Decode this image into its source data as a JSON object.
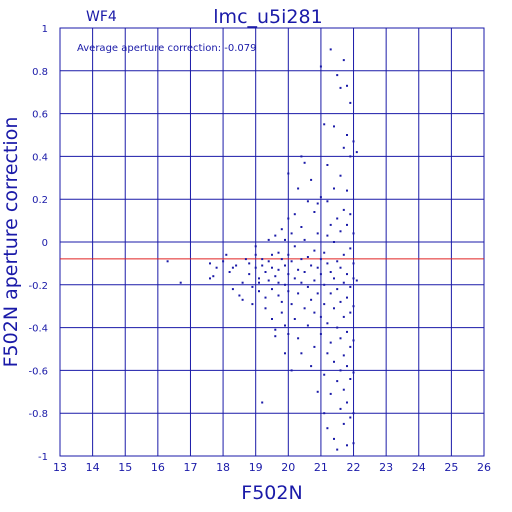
{
  "chart_data": {
    "type": "scatter",
    "title": "lmc_u5i281",
    "chip_label": "WF4",
    "annotation": "Average aperture correction: -0.079",
    "xlabel": "F502N",
    "ylabel": "F502N aperture correction",
    "xlim": [
      13,
      26
    ],
    "ylim": [
      -1,
      1
    ],
    "x_ticks": [
      "13",
      "14",
      "15",
      "16",
      "17",
      "18",
      "19",
      "20",
      "21",
      "22",
      "23",
      "24",
      "25",
      "26"
    ],
    "y_ticks": [
      "1",
      "0.8",
      "0.6",
      "0.4",
      "0.2",
      "0",
      "-0.2",
      "-0.4",
      "-0.6",
      "-0.8",
      "-1"
    ],
    "grid": true,
    "reference_line": -0.079,
    "colors": {
      "axes": "#1a1aa8",
      "points": "#1a1aa8",
      "reference": "#e02020"
    },
    "points": [
      [
        16.3,
        -0.09
      ],
      [
        16.7,
        -0.19
      ],
      [
        17.6,
        -0.17
      ],
      [
        17.6,
        -0.1
      ],
      [
        17.8,
        -0.12
      ],
      [
        17.7,
        -0.16
      ],
      [
        18.0,
        -0.09
      ],
      [
        18.1,
        -0.06
      ],
      [
        18.2,
        -0.14
      ],
      [
        18.3,
        -0.22
      ],
      [
        18.3,
        -0.12
      ],
      [
        18.4,
        -0.11
      ],
      [
        18.5,
        -0.25
      ],
      [
        18.6,
        -0.19
      ],
      [
        18.6,
        -0.27
      ],
      [
        18.7,
        -0.08
      ],
      [
        18.8,
        -0.1
      ],
      [
        18.8,
        -0.15
      ],
      [
        18.9,
        -0.21
      ],
      [
        18.9,
        -0.29
      ],
      [
        19.0,
        -0.02
      ],
      [
        19.0,
        -0.06
      ],
      [
        19.0,
        -0.12
      ],
      [
        19.1,
        -0.17
      ],
      [
        19.1,
        -0.19
      ],
      [
        19.1,
        -0.23
      ],
      [
        19.2,
        -0.08
      ],
      [
        19.2,
        -0.11
      ],
      [
        19.2,
        -0.75
      ],
      [
        19.3,
        -0.14
      ],
      [
        19.3,
        -0.26
      ],
      [
        19.3,
        -0.31
      ],
      [
        19.4,
        -0.18
      ],
      [
        19.4,
        -0.09
      ],
      [
        19.4,
        0.01
      ],
      [
        19.5,
        -0.12
      ],
      [
        19.5,
        -0.06
      ],
      [
        19.5,
        -0.22
      ],
      [
        19.5,
        -0.36
      ],
      [
        19.6,
        -0.16
      ],
      [
        19.6,
        -0.41
      ],
      [
        19.6,
        -0.44
      ],
      [
        19.6,
        0.03
      ],
      [
        19.7,
        -0.13
      ],
      [
        19.7,
        -0.25
      ],
      [
        19.7,
        -0.05
      ],
      [
        19.7,
        -0.19
      ],
      [
        19.8,
        -0.08
      ],
      [
        19.8,
        -0.28
      ],
      [
        19.8,
        -0.33
      ],
      [
        19.8,
        0.06
      ],
      [
        19.9,
        -0.11
      ],
      [
        19.9,
        -0.2
      ],
      [
        19.9,
        0.01
      ],
      [
        19.9,
        -0.39
      ],
      [
        19.9,
        -0.52
      ],
      [
        20.0,
        -0.15
      ],
      [
        20.0,
        -0.06
      ],
      [
        20.0,
        -0.23
      ],
      [
        20.0,
        0.32
      ],
      [
        20.0,
        0.11
      ],
      [
        20.0,
        -0.43
      ],
      [
        20.1,
        -0.09
      ],
      [
        20.1,
        -0.29
      ],
      [
        20.1,
        0.04
      ],
      [
        20.1,
        -0.6
      ],
      [
        20.2,
        -0.17
      ],
      [
        20.2,
        -0.36
      ],
      [
        20.2,
        -0.02
      ],
      [
        20.2,
        0.13
      ],
      [
        20.3,
        -0.13
      ],
      [
        20.3,
        -0.24
      ],
      [
        20.3,
        -0.45
      ],
      [
        20.3,
        0.25
      ],
      [
        20.4,
        0.4
      ],
      [
        20.4,
        -0.08
      ],
      [
        20.4,
        -0.19
      ],
      [
        20.4,
        0.07
      ],
      [
        20.4,
        -0.52
      ],
      [
        20.5,
        -0.31
      ],
      [
        20.5,
        0.01
      ],
      [
        20.5,
        -0.14
      ],
      [
        20.5,
        0.37
      ],
      [
        20.6,
        -0.21
      ],
      [
        20.6,
        -0.39
      ],
      [
        20.6,
        0.19
      ],
      [
        20.6,
        -0.07
      ],
      [
        20.7,
        -0.11
      ],
      [
        20.7,
        -0.27
      ],
      [
        20.7,
        0.29
      ],
      [
        20.7,
        -0.58
      ],
      [
        20.8,
        -0.04
      ],
      [
        20.8,
        -0.18
      ],
      [
        20.8,
        -0.33
      ],
      [
        20.8,
        0.14
      ],
      [
        20.8,
        -0.49
      ],
      [
        20.9,
        -0.12
      ],
      [
        20.9,
        -0.24
      ],
      [
        20.9,
        0.18
      ],
      [
        20.9,
        0.04
      ],
      [
        20.9,
        -0.7
      ],
      [
        21.0,
        -0.08
      ],
      [
        21.0,
        -0.35
      ],
      [
        21.0,
        0.21
      ],
      [
        21.0,
        -0.15
      ],
      [
        21.0,
        -0.43
      ],
      [
        21.0,
        0.82
      ],
      [
        21.1,
        -0.2
      ],
      [
        21.1,
        -0.05
      ],
      [
        21.1,
        0.55
      ],
      [
        21.1,
        -0.29
      ],
      [
        21.1,
        -0.62
      ],
      [
        21.1,
        -0.8
      ],
      [
        21.2,
        -0.1
      ],
      [
        21.2,
        0.03
      ],
      [
        21.2,
        -0.38
      ],
      [
        21.2,
        0.19
      ],
      [
        21.2,
        -0.52
      ],
      [
        21.2,
        0.36
      ],
      [
        21.2,
        -0.87
      ],
      [
        21.3,
        -0.14
      ],
      [
        21.3,
        -0.24
      ],
      [
        21.3,
        0.08
      ],
      [
        21.3,
        -0.47
      ],
      [
        21.3,
        0.9
      ],
      [
        21.3,
        -0.71
      ],
      [
        21.4,
        0.0
      ],
      [
        21.4,
        -0.17
      ],
      [
        21.4,
        -0.31
      ],
      [
        21.4,
        0.25
      ],
      [
        21.4,
        -0.56
      ],
      [
        21.4,
        0.54
      ],
      [
        21.4,
        -0.92
      ],
      [
        21.5,
        -0.09
      ],
      [
        21.5,
        -0.22
      ],
      [
        21.5,
        0.11
      ],
      [
        21.5,
        -0.4
      ],
      [
        21.5,
        -0.65
      ],
      [
        21.5,
        0.78
      ],
      [
        21.5,
        -0.97
      ],
      [
        21.6,
        -0.12
      ],
      [
        21.6,
        -0.28
      ],
      [
        21.6,
        0.05
      ],
      [
        21.6,
        -0.45
      ],
      [
        21.6,
        0.31
      ],
      [
        21.6,
        -0.6
      ],
      [
        21.6,
        -0.78
      ],
      [
        21.6,
        0.72
      ],
      [
        21.7,
        -0.06
      ],
      [
        21.7,
        -0.19
      ],
      [
        21.7,
        -0.35
      ],
      [
        21.7,
        0.15
      ],
      [
        21.7,
        -0.53
      ],
      [
        21.7,
        0.44
      ],
      [
        21.7,
        -0.69
      ],
      [
        21.7,
        -0.85
      ],
      [
        21.7,
        0.85
      ],
      [
        21.8,
        -0.15
      ],
      [
        21.8,
        -0.26
      ],
      [
        21.8,
        0.08
      ],
      [
        21.8,
        -0.42
      ],
      [
        21.8,
        0.24
      ],
      [
        21.8,
        -0.58
      ],
      [
        21.8,
        0.5
      ],
      [
        21.8,
        -0.75
      ],
      [
        21.8,
        -0.95
      ],
      [
        21.8,
        0.73
      ],
      [
        21.9,
        -0.03
      ],
      [
        21.9,
        -0.21
      ],
      [
        21.9,
        -0.33
      ],
      [
        21.9,
        0.13
      ],
      [
        21.9,
        -0.49
      ],
      [
        21.9,
        0.4
      ],
      [
        21.9,
        -0.64
      ],
      [
        21.9,
        -0.82
      ],
      [
        21.9,
        0.65
      ],
      [
        22.0,
        -0.1
      ],
      [
        22.0,
        -0.17
      ],
      [
        22.0,
        -0.3
      ],
      [
        22.0,
        -0.46
      ],
      [
        22.0,
        0.04
      ],
      [
        22.0,
        -0.61
      ],
      [
        22.0,
        0.47
      ],
      [
        22.0,
        -0.8
      ],
      [
        22.0,
        -0.94
      ],
      [
        22.1,
        -0.18
      ],
      [
        22.1,
        0.42
      ]
    ]
  }
}
